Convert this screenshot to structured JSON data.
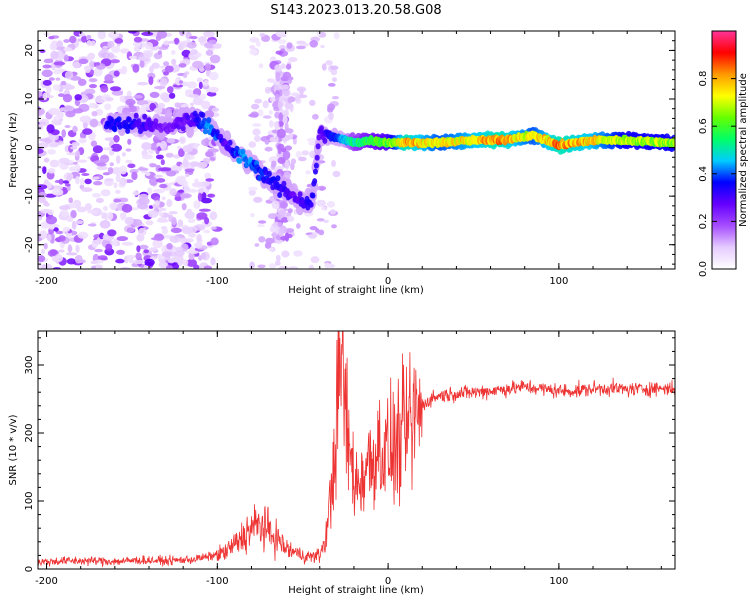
{
  "figure": {
    "title": "S143.2023.013.20.58.G08"
  },
  "chart_data": [
    {
      "type": "heatmap",
      "xlabel": "Height of straight line (km)",
      "ylabel": "Frequency (Hz)",
      "xlim": [
        -205,
        168
      ],
      "ylim": [
        -25,
        24
      ],
      "x_ticks": [
        -200,
        -100,
        0,
        100
      ],
      "y_ticks": [
        -20,
        -10,
        0,
        10,
        20
      ],
      "colorbar": {
        "label": "Normalized spectral amplitude",
        "range": [
          0,
          1
        ],
        "ticks": [
          0.0,
          0.2,
          0.4,
          0.6,
          0.8
        ],
        "colormap": [
          "#ffffff",
          "#e6ccff",
          "#a64dff",
          "#6600ff",
          "#0000ff",
          "#00ccff",
          "#00ff66",
          "#66ff00",
          "#ffff00",
          "#ff9900",
          "#ff0000",
          "#ff3399"
        ]
      },
      "ridge": [
        {
          "x": -150,
          "freq": 5.0,
          "amp": 0.35
        },
        {
          "x": -130,
          "freq": 4.0,
          "amp": 0.25
        },
        {
          "x": -115,
          "freq": 6.0,
          "amp": 0.3
        },
        {
          "x": -105,
          "freq": 5.0,
          "amp": 0.45
        },
        {
          "x": -95,
          "freq": 0.0,
          "amp": 0.3
        },
        {
          "x": -85,
          "freq": -2.0,
          "amp": 0.45
        },
        {
          "x": -75,
          "freq": -5.0,
          "amp": 0.4
        },
        {
          "x": -65,
          "freq": -8.0,
          "amp": 0.35
        },
        {
          "x": -55,
          "freq": -10.0,
          "amp": 0.3
        },
        {
          "x": -45,
          "freq": -12.0,
          "amp": 0.35
        },
        {
          "x": -40,
          "freq": 3.0,
          "amp": 0.3
        },
        {
          "x": -30,
          "freq": 2.0,
          "amp": 0.4
        },
        {
          "x": -20,
          "freq": 1.0,
          "amp": 0.55
        },
        {
          "x": -10,
          "freq": 1.5,
          "amp": 0.6
        },
        {
          "x": 0,
          "freq": 1.0,
          "amp": 0.65
        },
        {
          "x": 10,
          "freq": 1.0,
          "amp": 0.85
        },
        {
          "x": 30,
          "freq": 1.0,
          "amp": 0.75
        },
        {
          "x": 50,
          "freq": 1.5,
          "amp": 0.8
        },
        {
          "x": 65,
          "freq": 1.5,
          "amp": 0.85
        },
        {
          "x": 75,
          "freq": 2.0,
          "amp": 0.8
        },
        {
          "x": 85,
          "freq": 2.5,
          "amp": 0.75
        },
        {
          "x": 100,
          "freq": 0.5,
          "amp": 0.85
        },
        {
          "x": 120,
          "freq": 1.5,
          "amp": 0.8
        },
        {
          "x": 140,
          "freq": 1.5,
          "amp": 0.7
        },
        {
          "x": 165,
          "freq": 1.0,
          "amp": 0.7
        }
      ]
    },
    {
      "type": "line",
      "xlabel": "Height of straight line (km)",
      "ylabel": "SNR (10 * v/v)",
      "xlim": [
        -205,
        168
      ],
      "ylim": [
        0,
        350
      ],
      "x_ticks": [
        -200,
        -100,
        0,
        100
      ],
      "y_ticks": [
        0,
        100,
        200,
        300
      ],
      "color": "#ee3333",
      "series": [
        {
          "x": [
            -205,
            -190,
            -175,
            -160,
            -145,
            -130,
            -115,
            -105,
            -95,
            -88,
            -80,
            -75,
            -70,
            -65,
            -60,
            -55,
            -50,
            -45,
            -40,
            -36,
            -32,
            -29,
            -27,
            -25,
            -22,
            -18,
            -15,
            -10,
            -5,
            0,
            5,
            10,
            15,
            20,
            25,
            30,
            40,
            50,
            60,
            70,
            80,
            90,
            100,
            110,
            120,
            130,
            140,
            150,
            160,
            168
          ],
          "y": [
            10,
            12,
            12,
            11,
            13,
            12,
            14,
            18,
            25,
            40,
            60,
            65,
            55,
            45,
            30,
            25,
            20,
            18,
            20,
            50,
            150,
            260,
            320,
            230,
            160,
            120,
            140,
            160,
            180,
            170,
            180,
            200,
            220,
            240,
            250,
            255,
            258,
            260,
            262,
            265,
            268,
            265,
            262,
            262,
            265,
            266,
            264,
            265,
            266,
            265
          ]
        }
      ]
    }
  ]
}
